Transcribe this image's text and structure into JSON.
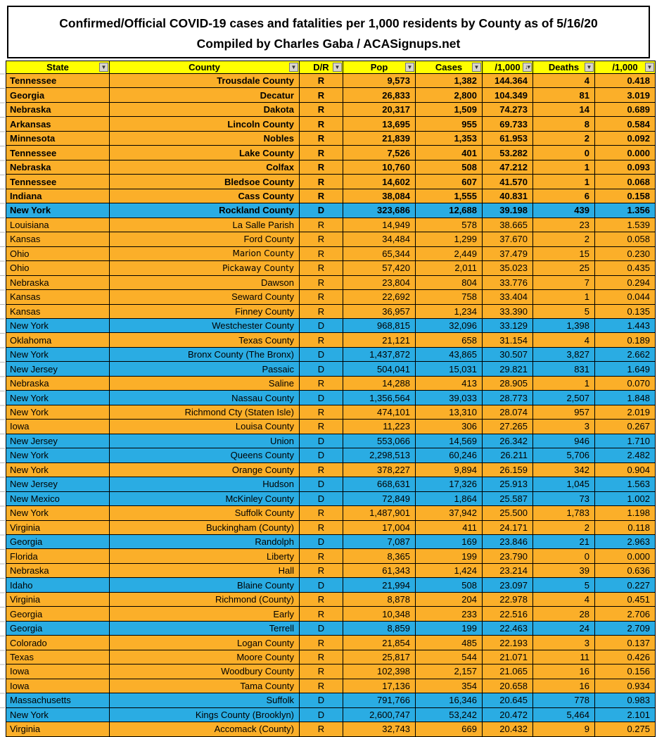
{
  "title": {
    "line1": "Confirmed/Official COVID-19 cases and fatalities per 1,000 residents by County as of 5/16/20",
    "line2": "Compiled by Charles Gaba / ACASignups.net"
  },
  "colors": {
    "republican_row": "#FBAF29",
    "democrat_row": "#2AACE3",
    "header_bg": "#FFFF00",
    "grid_line": "#000000"
  },
  "icons": {
    "filter_dropdown": "filter-dropdown-icon",
    "sort_descending": "sort-descending-icon"
  },
  "table": {
    "columns": [
      {
        "label": "State",
        "sorted": false
      },
      {
        "label": "County",
        "sorted": false
      },
      {
        "label": "D/R",
        "sorted": false
      },
      {
        "label": "Pop",
        "sorted": false
      },
      {
        "label": "Cases",
        "sorted": false
      },
      {
        "label": "/1,000",
        "sorted": true
      },
      {
        "label": "Deaths",
        "sorted": false
      },
      {
        "label": "/1,000",
        "sorted": false
      }
    ],
    "rows": [
      {
        "state": "Tennessee",
        "county": "Trousdale County",
        "dr": "R",
        "pop": "9,573",
        "cases": "1,382",
        "per1000": "144.364",
        "deaths": "4",
        "dper1000": "0.418",
        "bold": true
      },
      {
        "state": "Georgia",
        "county": "Decatur",
        "dr": "R",
        "pop": "26,833",
        "cases": "2,800",
        "per1000": "104.349",
        "deaths": "81",
        "dper1000": "3.019",
        "bold": true
      },
      {
        "state": "Nebraska",
        "county": "Dakota",
        "dr": "R",
        "pop": "20,317",
        "cases": "1,509",
        "per1000": "74.273",
        "deaths": "14",
        "dper1000": "0.689",
        "bold": true
      },
      {
        "state": "Arkansas",
        "county": "Lincoln County",
        "dr": "R",
        "pop": "13,695",
        "cases": "955",
        "per1000": "69.733",
        "deaths": "8",
        "dper1000": "0.584",
        "bold": true
      },
      {
        "state": "Minnesota",
        "county": "Nobles",
        "dr": "R",
        "pop": "21,839",
        "cases": "1,353",
        "per1000": "61.953",
        "deaths": "2",
        "dper1000": "0.092",
        "bold": true
      },
      {
        "state": "Tennessee",
        "county": "Lake County",
        "dr": "R",
        "pop": "7,526",
        "cases": "401",
        "per1000": "53.282",
        "deaths": "0",
        "dper1000": "0.000",
        "bold": true
      },
      {
        "state": "Nebraska",
        "county": "Colfax",
        "dr": "R",
        "pop": "10,760",
        "cases": "508",
        "per1000": "47.212",
        "deaths": "1",
        "dper1000": "0.093",
        "bold": true
      },
      {
        "state": "Tennessee",
        "county": "Bledsoe County",
        "dr": "R",
        "pop": "14,602",
        "cases": "607",
        "per1000": "41.570",
        "deaths": "1",
        "dper1000": "0.068",
        "bold": true
      },
      {
        "state": "Indiana",
        "county": "Cass County",
        "dr": "R",
        "pop": "38,084",
        "cases": "1,555",
        "per1000": "40.831",
        "deaths": "6",
        "dper1000": "0.158",
        "bold": true
      },
      {
        "state": "New York",
        "county": "Rockland County",
        "dr": "D",
        "pop": "323,686",
        "cases": "12,688",
        "per1000": "39.198",
        "deaths": "439",
        "dper1000": "1.356",
        "bold": true
      },
      {
        "state": "Louisiana",
        "county": "La Salle Parish",
        "dr": "R",
        "pop": "14,949",
        "cases": "578",
        "per1000": "38.665",
        "deaths": "23",
        "dper1000": "1.539",
        "bold": false
      },
      {
        "state": "Kansas",
        "county": "Ford County",
        "dr": "R",
        "pop": "34,484",
        "cases": "1,299",
        "per1000": "37.670",
        "deaths": "2",
        "dper1000": "0.058",
        "bold": false
      },
      {
        "state": "Ohio",
        "county": "Marion County",
        "dr": "R",
        "pop": "65,344",
        "cases": "2,449",
        "per1000": "37.479",
        "deaths": "15",
        "dper1000": "0.230",
        "bold": false,
        "alt_font": true
      },
      {
        "state": "Ohio",
        "county": "Pickaway County",
        "dr": "R",
        "pop": "57,420",
        "cases": "2,011",
        "per1000": "35.023",
        "deaths": "25",
        "dper1000": "0.435",
        "bold": false,
        "alt_font": true
      },
      {
        "state": "Nebraska",
        "county": "Dawson",
        "dr": "R",
        "pop": "23,804",
        "cases": "804",
        "per1000": "33.776",
        "deaths": "7",
        "dper1000": "0.294",
        "bold": false
      },
      {
        "state": "Kansas",
        "county": "Seward County",
        "dr": "R",
        "pop": "22,692",
        "cases": "758",
        "per1000": "33.404",
        "deaths": "1",
        "dper1000": "0.044",
        "bold": false
      },
      {
        "state": "Kansas",
        "county": "Finney County",
        "dr": "R",
        "pop": "36,957",
        "cases": "1,234",
        "per1000": "33.390",
        "deaths": "5",
        "dper1000": "0.135",
        "bold": false
      },
      {
        "state": "New York",
        "county": "Westchester County",
        "dr": "D",
        "pop": "968,815",
        "cases": "32,096",
        "per1000": "33.129",
        "deaths": "1,398",
        "dper1000": "1.443",
        "bold": false
      },
      {
        "state": "Oklahoma",
        "county": "Texas County",
        "dr": "R",
        "pop": "21,121",
        "cases": "658",
        "per1000": "31.154",
        "deaths": "4",
        "dper1000": "0.189",
        "bold": false
      },
      {
        "state": "New York",
        "county": "Bronx County (The Bronx)",
        "dr": "D",
        "pop": "1,437,872",
        "cases": "43,865",
        "per1000": "30.507",
        "deaths": "3,827",
        "dper1000": "2.662",
        "bold": false
      },
      {
        "state": "New Jersey",
        "county": "Passaic",
        "dr": "D",
        "pop": "504,041",
        "cases": "15,031",
        "per1000": "29.821",
        "deaths": "831",
        "dper1000": "1.649",
        "bold": false
      },
      {
        "state": "Nebraska",
        "county": "Saline",
        "dr": "R",
        "pop": "14,288",
        "cases": "413",
        "per1000": "28.905",
        "deaths": "1",
        "dper1000": "0.070",
        "bold": false
      },
      {
        "state": "New York",
        "county": "Nassau County",
        "dr": "D",
        "pop": "1,356,564",
        "cases": "39,033",
        "per1000": "28.773",
        "deaths": "2,507",
        "dper1000": "1.848",
        "bold": false
      },
      {
        "state": "New York",
        "county": "Richmond Cty (Staten Isle)",
        "dr": "R",
        "pop": "474,101",
        "cases": "13,310",
        "per1000": "28.074",
        "deaths": "957",
        "dper1000": "2.019",
        "bold": false
      },
      {
        "state": "Iowa",
        "county": "Louisa County",
        "dr": "R",
        "pop": "11,223",
        "cases": "306",
        "per1000": "27.265",
        "deaths": "3",
        "dper1000": "0.267",
        "bold": false
      },
      {
        "state": "New Jersey",
        "county": "Union",
        "dr": "D",
        "pop": "553,066",
        "cases": "14,569",
        "per1000": "26.342",
        "deaths": "946",
        "dper1000": "1.710",
        "bold": false
      },
      {
        "state": "New York",
        "county": "Queens County",
        "dr": "D",
        "pop": "2,298,513",
        "cases": "60,246",
        "per1000": "26.211",
        "deaths": "5,706",
        "dper1000": "2.482",
        "bold": false
      },
      {
        "state": "New York",
        "county": "Orange County",
        "dr": "R",
        "pop": "378,227",
        "cases": "9,894",
        "per1000": "26.159",
        "deaths": "342",
        "dper1000": "0.904",
        "bold": false
      },
      {
        "state": "New Jersey",
        "county": "Hudson",
        "dr": "D",
        "pop": "668,631",
        "cases": "17,326",
        "per1000": "25.913",
        "deaths": "1,045",
        "dper1000": "1.563",
        "bold": false
      },
      {
        "state": "New Mexico",
        "county": "McKinley County",
        "dr": "D",
        "pop": "72,849",
        "cases": "1,864",
        "per1000": "25.587",
        "deaths": "73",
        "dper1000": "1.002",
        "bold": false
      },
      {
        "state": "New York",
        "county": "Suffolk County",
        "dr": "R",
        "pop": "1,487,901",
        "cases": "37,942",
        "per1000": "25.500",
        "deaths": "1,783",
        "dper1000": "1.198",
        "bold": false
      },
      {
        "state": "Virginia",
        "county": "Buckingham (County)",
        "dr": "R",
        "pop": "17,004",
        "cases": "411",
        "per1000": "24.171",
        "deaths": "2",
        "dper1000": "0.118",
        "bold": false
      },
      {
        "state": "Georgia",
        "county": "Randolph",
        "dr": "D",
        "pop": "7,087",
        "cases": "169",
        "per1000": "23.846",
        "deaths": "21",
        "dper1000": "2.963",
        "bold": false
      },
      {
        "state": "Florida",
        "county": "Liberty",
        "dr": "R",
        "pop": "8,365",
        "cases": "199",
        "per1000": "23.790",
        "deaths": "0",
        "dper1000": "0.000",
        "bold": false
      },
      {
        "state": "Nebraska",
        "county": "Hall",
        "dr": "R",
        "pop": "61,343",
        "cases": "1,424",
        "per1000": "23.214",
        "deaths": "39",
        "dper1000": "0.636",
        "bold": false
      },
      {
        "state": "Idaho",
        "county": "Blaine County",
        "dr": "D",
        "pop": "21,994",
        "cases": "508",
        "per1000": "23.097",
        "deaths": "5",
        "dper1000": "0.227",
        "bold": false
      },
      {
        "state": "Virginia",
        "county": "Richmond (County)",
        "dr": "R",
        "pop": "8,878",
        "cases": "204",
        "per1000": "22.978",
        "deaths": "4",
        "dper1000": "0.451",
        "bold": false
      },
      {
        "state": "Georgia",
        "county": "Early",
        "dr": "R",
        "pop": "10,348",
        "cases": "233",
        "per1000": "22.516",
        "deaths": "28",
        "dper1000": "2.706",
        "bold": false
      },
      {
        "state": "Georgia",
        "county": "Terrell",
        "dr": "D",
        "pop": "8,859",
        "cases": "199",
        "per1000": "22.463",
        "deaths": "24",
        "dper1000": "2.709",
        "bold": false
      },
      {
        "state": "Colorado",
        "county": "Logan County",
        "dr": "R",
        "pop": "21,854",
        "cases": "485",
        "per1000": "22.193",
        "deaths": "3",
        "dper1000": "0.137",
        "bold": false
      },
      {
        "state": "Texas",
        "county": "Moore County",
        "dr": "R",
        "pop": "25,817",
        "cases": "544",
        "per1000": "21.071",
        "deaths": "11",
        "dper1000": "0.426",
        "bold": false
      },
      {
        "state": "Iowa",
        "county": "Woodbury County",
        "dr": "R",
        "pop": "102,398",
        "cases": "2,157",
        "per1000": "21.065",
        "deaths": "16",
        "dper1000": "0.156",
        "bold": false
      },
      {
        "state": "Iowa",
        "county": "Tama County",
        "dr": "R",
        "pop": "17,136",
        "cases": "354",
        "per1000": "20.658",
        "deaths": "16",
        "dper1000": "0.934",
        "bold": false
      },
      {
        "state": "Massachusetts",
        "county": "Suffolk",
        "dr": "D",
        "pop": "791,766",
        "cases": "16,346",
        "per1000": "20.645",
        "deaths": "778",
        "dper1000": "0.983",
        "bold": false
      },
      {
        "state": "New York",
        "county": "Kings County (Brooklyn)",
        "dr": "D",
        "pop": "2,600,747",
        "cases": "53,242",
        "per1000": "20.472",
        "deaths": "5,464",
        "dper1000": "2.101",
        "bold": false
      },
      {
        "state": "Virginia",
        "county": "Accomack (County)",
        "dr": "R",
        "pop": "32,743",
        "cases": "669",
        "per1000": "20.432",
        "deaths": "9",
        "dper1000": "0.275",
        "bold": false
      }
    ]
  }
}
